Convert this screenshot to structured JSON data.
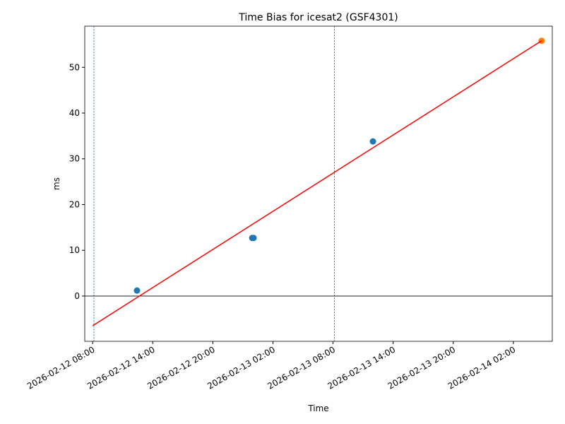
{
  "chart_data": {
    "type": "scatter",
    "title": "Time Bias for icesat2 (GSF4301)",
    "xlabel": "Time",
    "ylabel": "ms",
    "series": [
      {
        "type": "scatter",
        "color": "#1f77b4",
        "x": [
          "2026-02-12T12:26",
          "2026-02-12T23:56",
          "2026-02-13T00:04",
          "2026-02-13T11:59"
        ],
        "values": [
          1.2,
          12.7,
          12.7,
          33.8
        ]
      },
      {
        "type": "scatter",
        "color": "#ff7f0e",
        "x": [
          "2026-02-14T04:49"
        ],
        "values": [
          55.8
        ]
      },
      {
        "type": "line",
        "color": "#ff0000",
        "x": [
          "2026-02-12T08:00",
          "2026-02-14T04:49"
        ],
        "values": [
          -6.5,
          55.8
        ]
      }
    ],
    "vlines": {
      "color": "#1f77b4",
      "x": [
        "2026-02-12T08:08",
        "2026-02-13T08:08"
      ]
    },
    "hlines": {
      "color": "#000000",
      "values": [
        0
      ]
    },
    "xlim": [
      "2026-02-12T07:13",
      "2026-02-14T05:53"
    ],
    "xticks": [
      {
        "value": "2026-02-12T08:00",
        "label": "2026-02-12 08:00"
      },
      {
        "value": "2026-02-12T14:00",
        "label": "2026-02-12 14:00"
      },
      {
        "value": "2026-02-12T20:00",
        "label": "2026-02-12 20:00"
      },
      {
        "value": "2026-02-13T02:00",
        "label": "2026-02-13 02:00"
      },
      {
        "value": "2026-02-13T08:00",
        "label": "2026-02-13 08:00"
      },
      {
        "value": "2026-02-13T14:00",
        "label": "2026-02-13 14:00"
      },
      {
        "value": "2026-02-13T20:00",
        "label": "2026-02-13 20:00"
      },
      {
        "value": "2026-02-14T02:00",
        "label": "2026-02-14 02:00"
      }
    ],
    "ylim": [
      -9.9,
      59
    ],
    "yticks": [
      0,
      10,
      20,
      30,
      40,
      50
    ]
  }
}
